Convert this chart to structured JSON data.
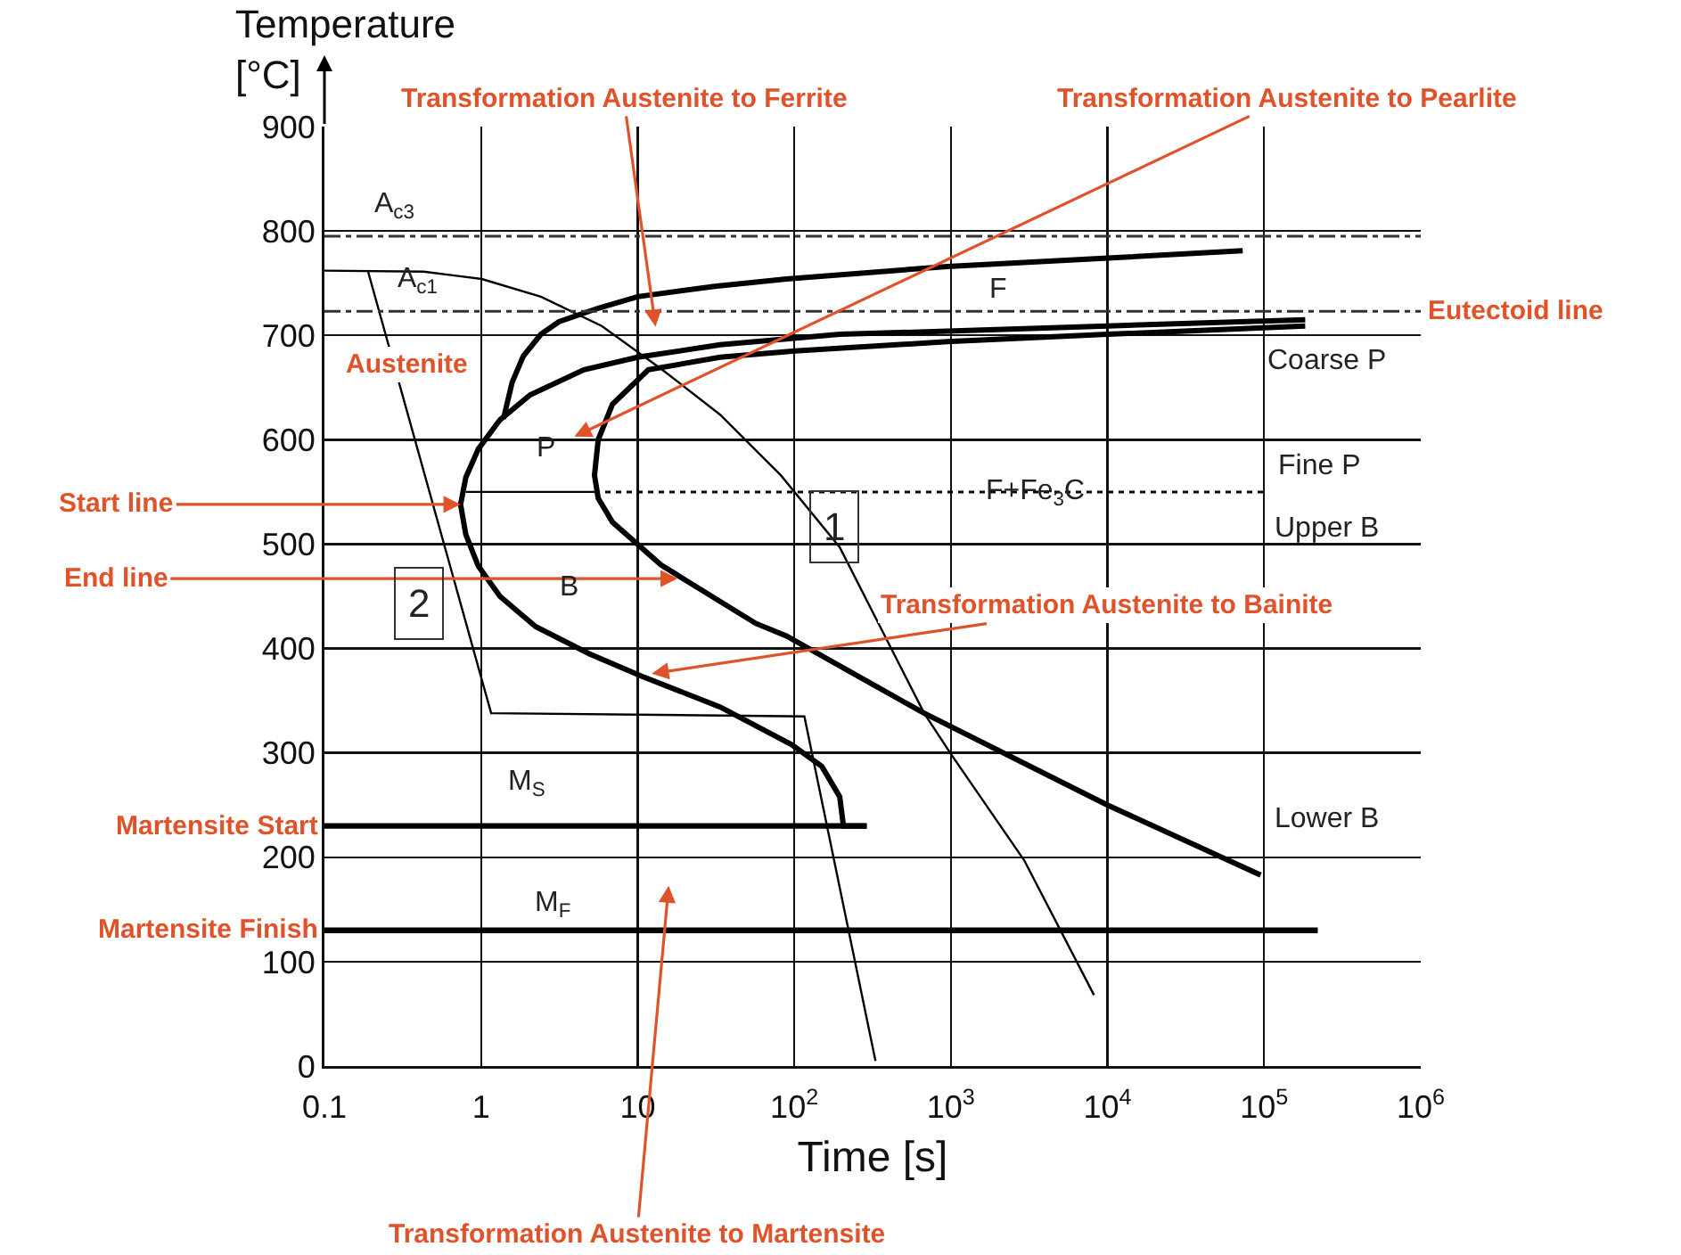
{
  "chart_data": {
    "type": "line",
    "xlabel": "Time [s]",
    "ylabel": "Temperature\n[°C]",
    "log": "x",
    "grid": true,
    "marker": "none",
    "xlim": [
      0.1,
      1000000
    ],
    "ylim": [
      0,
      900
    ],
    "xticks": [
      0.1,
      1,
      10,
      {
        "value": 100,
        "label": "10$^{2}$"
      },
      {
        "value": 1000,
        "label": "10$^{3}$"
      },
      {
        "value": 10000,
        "label": "10$^{4}$"
      },
      {
        "value": 100000,
        "label": "10$^{5}$"
      },
      {
        "value": 1000000,
        "label": "10$^{6}$"
      }
    ],
    "yticks": [
      0,
      100,
      200,
      300,
      400,
      500,
      600,
      700,
      800,
      900
    ],
    "series": [
      {
        "color": "#000000",
        "x": [
          1.39,
          1.58,
          1.86,
          2.41,
          3.14,
          5.6,
          10,
          31,
          89,
          950,
          10100,
          73000
        ],
        "values": [
          620,
          655,
          680,
          701,
          713,
          726,
          737,
          747,
          754,
          766,
          774,
          781
        ]
      },
      {
        "color": "#000000",
        "x": [
          183000,
          10000,
          950,
          195,
          33.6,
          10,
          4.54,
          2.06,
          1.32,
          0.96,
          0.8,
          0.74,
          0.8,
          0.96,
          1.32,
          2.23,
          4.91,
          10.8,
          33.6,
          96,
          150,
          195,
          206,
          290
        ],
        "values": [
          715,
          709,
          704,
          701,
          691,
          679,
          667,
          643,
          619,
          591,
          564,
          538,
          509,
          479,
          450,
          421,
          395,
          373,
          344,
          308,
          287,
          258,
          230,
          230
        ]
      },
      {
        "color": "#000000",
        "x": [
          183000,
          10000,
          950,
          101,
          33.6,
          11.7,
          6.9,
          5.6,
          5.3,
          5.6,
          6.9,
          14.1,
          56.8,
          89,
          675,
          10000,
          95000
        ],
        "values": [
          709,
          701,
          694,
          685,
          679,
          667,
          634,
          600,
          566,
          544,
          521,
          480,
          424,
          412,
          338,
          250,
          183
        ]
      },
      {
        "color": "#000000",
        "x": [
          0.1,
          0.43,
          1.01,
          2.41,
          5.9,
          14.1,
          33.6,
          82,
          195,
          675,
          1000,
          2940,
          8200
        ],
        "values": [
          762,
          761,
          754,
          737,
          709,
          668,
          624,
          566,
          497,
          338,
          299,
          197,
          68
        ]
      },
      {
        "color": "#000000",
        "x": [
          0.19,
          1.16,
          116,
          330
        ],
        "values": [
          761,
          338,
          335,
          5
        ]
      },
      {
        "name": "Martensite Start",
        "color": "#000000",
        "x": [
          0.1,
          290
        ],
        "values": [
          230,
          230
        ]
      },
      {
        "name": "Martensite Finish",
        "color": "#000000",
        "x": [
          0.1,
          220000
        ],
        "values": [
          130,
          130
        ]
      },
      {
        "color": "#000000",
        "x": [
          0.8,
          5.3
        ],
        "values": [
          550,
          550
        ]
      },
      {
        "color": "#000000",
        "x": [
          5.3,
          100000
        ],
        "values": [
          550,
          550
        ],
        "line_style": "dotted"
      }
    ],
    "ref_lines": [
      {
        "axis": "y",
        "value": 795,
        "color": "#333333",
        "line_style": "dashdot"
      },
      {
        "axis": "y",
        "value": 723,
        "color": "#333333",
        "line_style": "dashdot",
        "label": "Eutectoid line"
      }
    ],
    "annotations": [
      "Transformation Austenite to Ferrite",
      "Transformation Austenite to Pearlite",
      {
        "text": "Transformation Austenite to Bainite",
        "x": 12.3,
        "y": 376
      },
      "Transformation Austenite to Martensite",
      {
        "text": "Start line",
        "x": 0.74,
        "y": 538
      },
      {
        "text": "End line",
        "x": 18,
        "y": 467
      },
      "Austenite",
      "A$_{c3}$",
      {
        "text": "A$_{c1}$",
        "x": 0.4,
        "y": 752
      },
      "F",
      "P",
      "B",
      {
        "text": "F+Fe$_{3}$C",
        "x": 3500,
        "y": 549
      },
      "Coarse P",
      "Fine P",
      "Upper B",
      "Lower B",
      "M$_{S}$",
      "M$_{F}$",
      {
        "text": "1",
        "x": 178,
        "y": 516
      },
      {
        "text": "2",
        "x": 0.4,
        "y": 444
      }
    ]
  }
}
